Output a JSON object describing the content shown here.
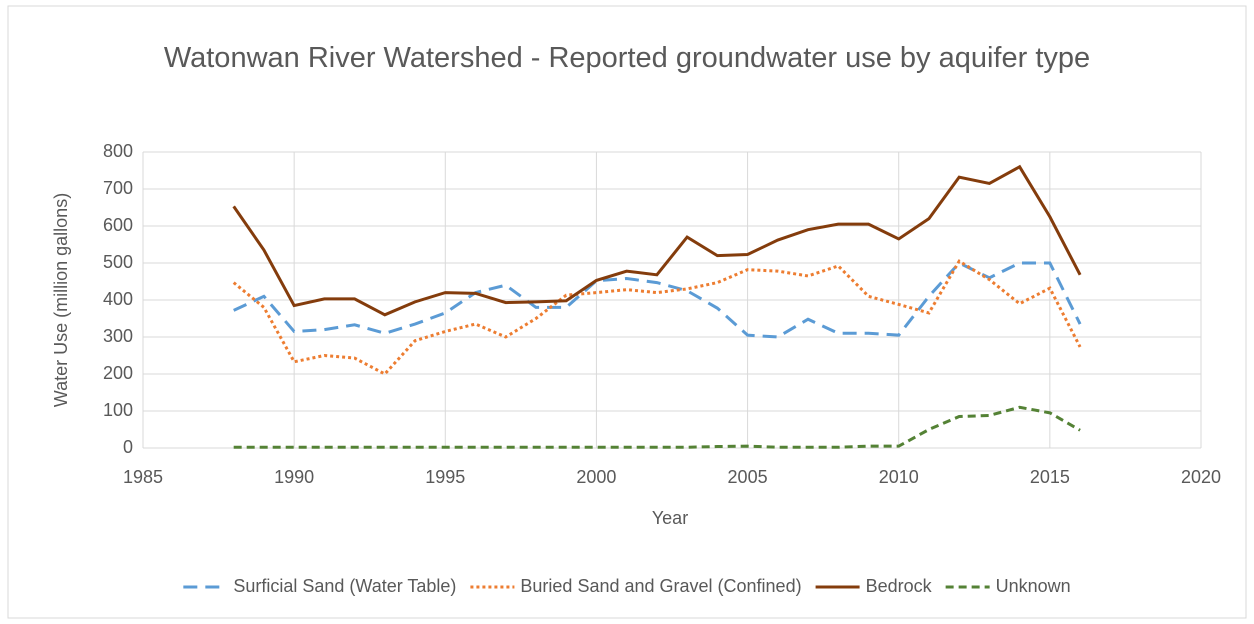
{
  "chart_data": {
    "type": "line",
    "title": "Watonwan River Watershed - Reported groundwater use by aquifer type",
    "x_label": "Year",
    "y_label": "Water Use (million gallons)",
    "x": [
      1988,
      1989,
      1990,
      1991,
      1992,
      1993,
      1994,
      1995,
      1996,
      1997,
      1998,
      1999,
      2000,
      2001,
      2002,
      2003,
      2004,
      2005,
      2006,
      2007,
      2008,
      2009,
      2010,
      2011,
      2012,
      2013,
      2014,
      2015,
      2016
    ],
    "series": [
      {
        "name": "Surficial Sand (Water Table)",
        "color": "#5b9bd5",
        "dash": "dashed",
        "values": [
          372,
          410,
          315,
          320,
          333,
          310,
          335,
          365,
          420,
          440,
          380,
          380,
          452,
          458,
          447,
          425,
          378,
          305,
          300,
          348,
          310,
          310,
          305,
          410,
          500,
          460,
          500,
          500,
          335
        ]
      },
      {
        "name": "Buried Sand and Gravel (Confined)",
        "color": "#ed7d31",
        "dash": "dotted",
        "values": [
          447,
          380,
          233,
          250,
          243,
          200,
          290,
          315,
          335,
          300,
          350,
          413,
          420,
          428,
          420,
          430,
          447,
          482,
          478,
          465,
          492,
          410,
          388,
          365,
          505,
          455,
          390,
          432,
          273
        ]
      },
      {
        "name": "Bedrock",
        "color": "#843c0c",
        "dash": "solid",
        "values": [
          653,
          535,
          385,
          403,
          403,
          360,
          395,
          420,
          418,
          393,
          395,
          398,
          453,
          478,
          468,
          570,
          520,
          523,
          562,
          590,
          605,
          605,
          565,
          620,
          732,
          715,
          760,
          625,
          468
        ]
      },
      {
        "name": "Unknown",
        "color": "#548235",
        "dash": "short-dashed",
        "values": [
          2,
          2,
          2,
          2,
          2,
          2,
          2,
          2,
          2,
          2,
          2,
          2,
          2,
          2,
          2,
          2,
          4,
          5,
          2,
          2,
          2,
          5,
          5,
          50,
          85,
          88,
          110,
          95,
          48
        ]
      }
    ],
    "xlim": [
      1985,
      2020
    ],
    "xticks": [
      1985,
      1990,
      1995,
      2000,
      2005,
      2010,
      2015,
      2020
    ],
    "ylim": [
      0,
      800
    ],
    "yticks": [
      0,
      100,
      200,
      300,
      400,
      500,
      600,
      700,
      800
    ],
    "grid": true,
    "legend": "bottom"
  }
}
